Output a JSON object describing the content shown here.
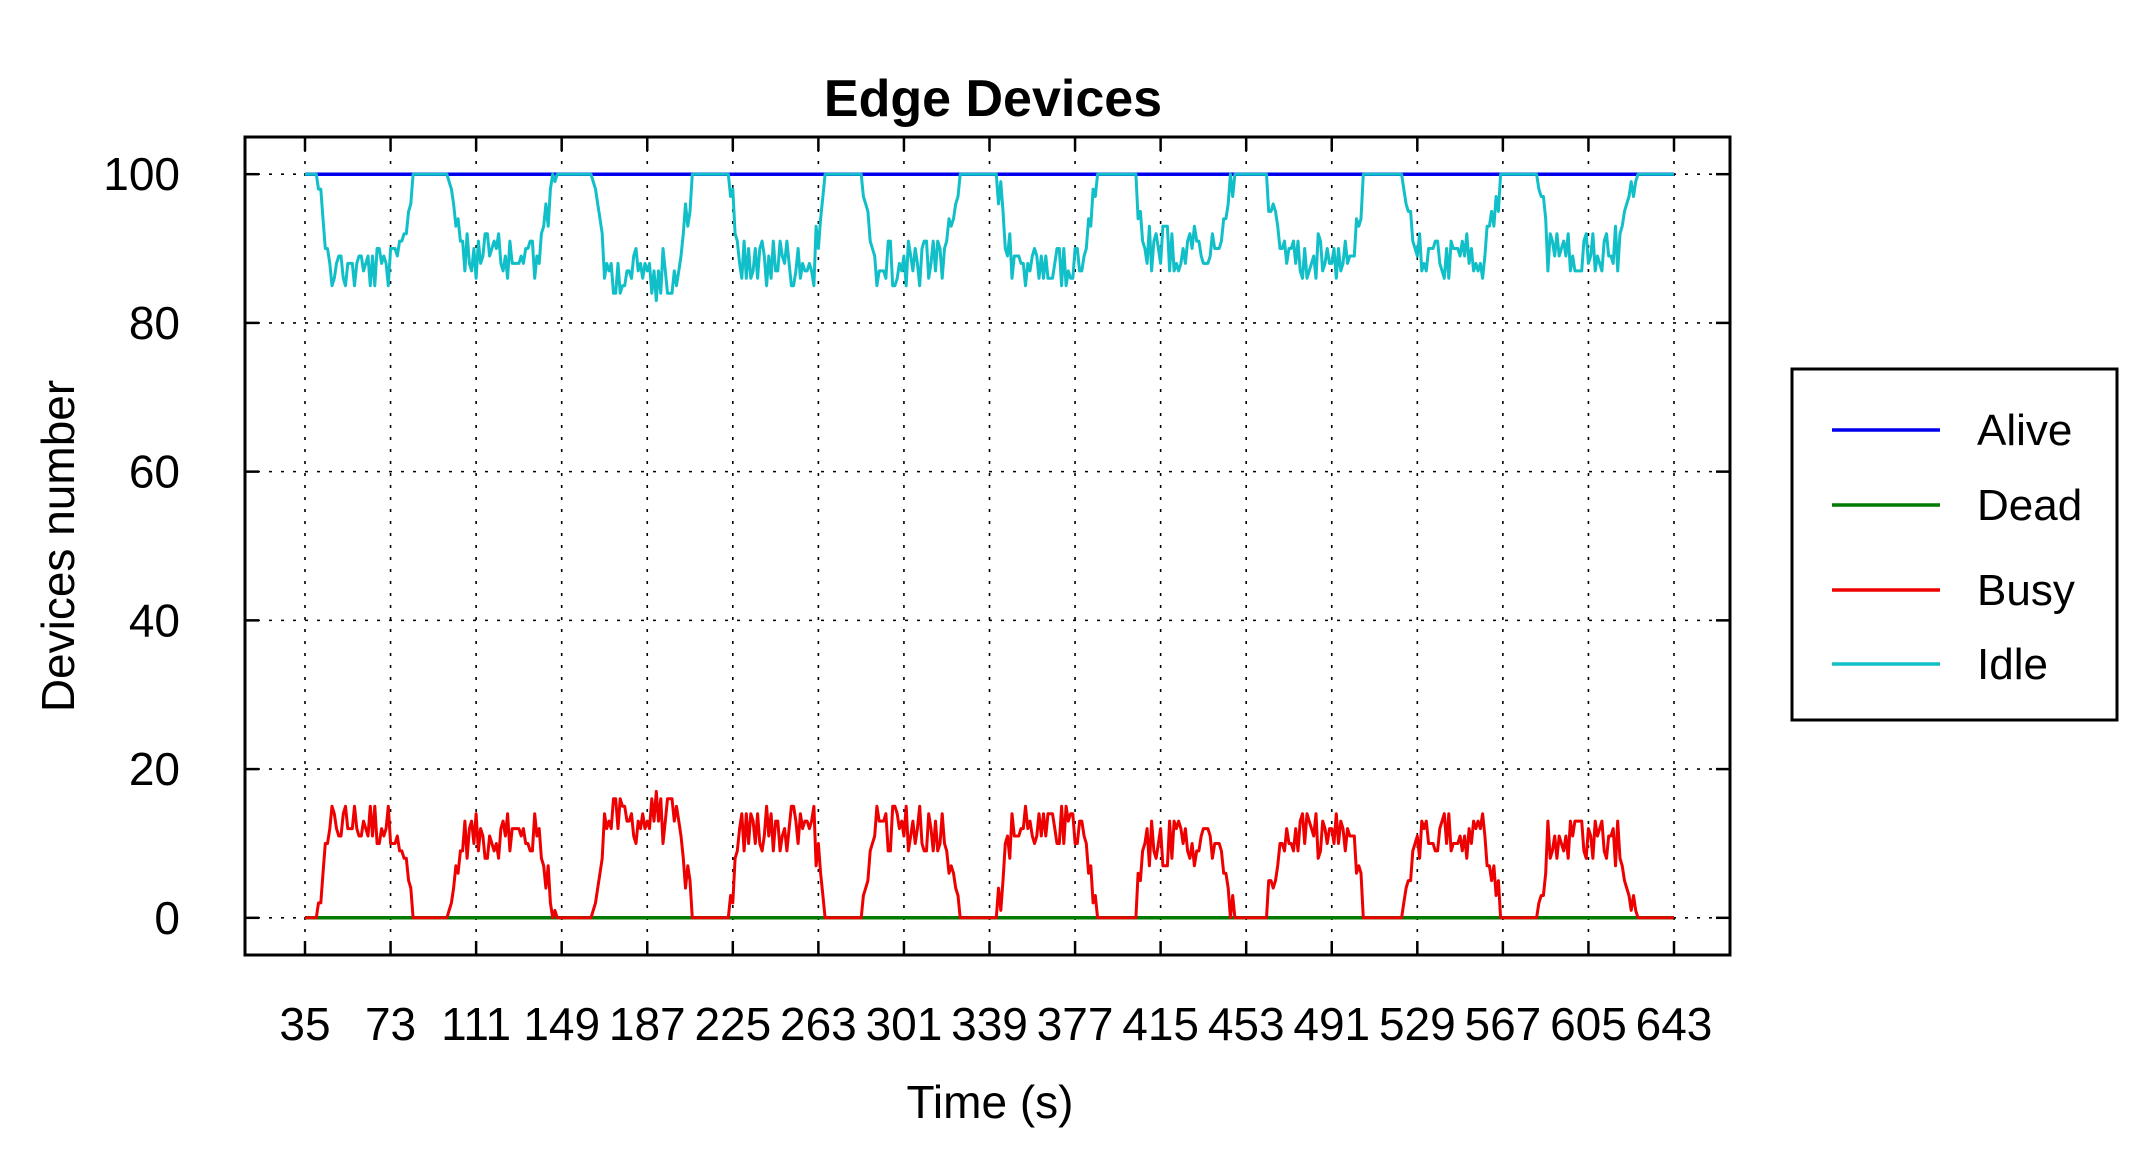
{
  "chart_data": {
    "type": "line",
    "title": "Edge Devices",
    "xlabel": "Time (s)",
    "ylabel": "Devices number",
    "ylim": [
      -5,
      105
    ],
    "yticks": [
      0,
      20,
      40,
      60,
      80,
      100
    ],
    "x_ticks": [
      "35",
      "73",
      "111",
      "149",
      "187",
      "225",
      "263",
      "301",
      "339",
      "377",
      "415",
      "453",
      "491",
      "529",
      "567",
      "605",
      "643"
    ],
    "grid": true,
    "legend_position": "right",
    "series": [
      {
        "name": "Alive",
        "color": "#0000ee"
      },
      {
        "name": "Dead",
        "color": "#007a00"
      },
      {
        "name": "Busy",
        "color": "#ee0000"
      },
      {
        "name": "Idle",
        "color": "#11bfc8"
      }
    ],
    "x_range": [
      35,
      643
    ],
    "cycles": [
      {
        "start": 35,
        "end": 92,
        "peak": 16
      },
      {
        "start": 92,
        "end": 156,
        "peak": 14
      },
      {
        "start": 156,
        "end": 217,
        "peak": 17
      },
      {
        "start": 217,
        "end": 277,
        "peak": 15
      },
      {
        "start": 277,
        "end": 336,
        "peak": 15
      },
      {
        "start": 336,
        "end": 397,
        "peak": 15
      },
      {
        "start": 397,
        "end": 456,
        "peak": 13
      },
      {
        "start": 456,
        "end": 516,
        "peak": 14
      },
      {
        "start": 516,
        "end": 576,
        "peak": 14
      },
      {
        "start": 576,
        "end": 636,
        "peak": 13
      }
    ]
  }
}
